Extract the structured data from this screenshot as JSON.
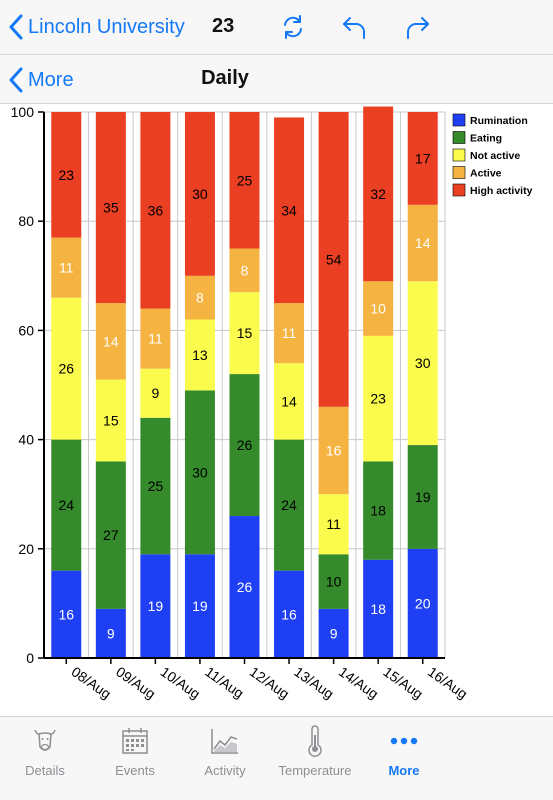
{
  "topbar": {
    "title": "Lincoln University",
    "count": "23"
  },
  "navbar": {
    "back_label": "More",
    "title": "Daily"
  },
  "tabs": [
    {
      "label": "Details",
      "icon": "cow-icon"
    },
    {
      "label": "Events",
      "icon": "calendar-icon"
    },
    {
      "label": "Activity",
      "icon": "activity-chart-icon"
    },
    {
      "label": "Temperature",
      "icon": "thermometer-icon"
    },
    {
      "label": "More",
      "icon": "more-dots-icon",
      "active": true
    }
  ],
  "colors": {
    "accent": "#1479f6"
  },
  "chart_data": {
    "type": "bar",
    "stacked": true,
    "categories": [
      "08/Aug",
      "09/Aug",
      "10/Aug",
      "11/Aug",
      "12/Aug",
      "13/Aug",
      "14/Aug",
      "15/Aug",
      "16/Aug"
    ],
    "series": [
      {
        "name": "Rumination",
        "color": "#1f3ff5",
        "label_color": "#ffffff",
        "values": [
          16,
          9,
          19,
          19,
          26,
          16,
          9,
          18,
          20
        ]
      },
      {
        "name": "Eating",
        "color": "#358a2c",
        "label_color": "#000000",
        "values": [
          24,
          27,
          25,
          30,
          26,
          24,
          10,
          18,
          19
        ]
      },
      {
        "name": "Not active",
        "color": "#fbfb4e",
        "label_color": "#000000",
        "values": [
          26,
          15,
          9,
          13,
          15,
          14,
          11,
          23,
          30
        ]
      },
      {
        "name": "Active",
        "color": "#f5b342",
        "label_color": "#ffffff",
        "values": [
          11,
          14,
          11,
          8,
          8,
          11,
          16,
          10,
          14
        ]
      },
      {
        "name": "High activity",
        "color": "#eb3f23",
        "label_color": "#000000",
        "values": [
          23,
          35,
          36,
          30,
          25,
          34,
          54,
          32,
          17
        ]
      }
    ],
    "yticks": [
      0,
      20,
      40,
      60,
      80,
      100
    ],
    "ylim": [
      0,
      100
    ],
    "grid": true,
    "legend": "top-right"
  }
}
